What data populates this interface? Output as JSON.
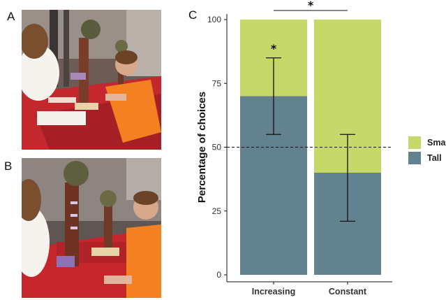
{
  "panels": {
    "a_label": "A",
    "b_label": "B",
    "c_label": "C"
  },
  "chart_data": {
    "type": "bar",
    "stacked": true,
    "categories": [
      "Increasing",
      "Constant"
    ],
    "series": [
      {
        "name": "Tall",
        "values": [
          70,
          40
        ],
        "color": "#62828f"
      },
      {
        "name": "Small",
        "values": [
          30,
          60
        ],
        "color": "#c6d86a"
      }
    ],
    "error_bars": [
      {
        "category": "Increasing",
        "center": 70,
        "low": 55,
        "high": 85
      },
      {
        "category": "Constant",
        "center": 40,
        "low": 21,
        "high": 55
      }
    ],
    "reference_line": 50,
    "significance": {
      "within_bar": [
        {
          "category": "Increasing",
          "label": "*"
        }
      ],
      "between_bars": {
        "label": "*"
      }
    },
    "ylabel": "Percentage of choices",
    "xlabel": "",
    "ylim": [
      0,
      100
    ],
    "yticks": [
      0,
      25,
      50,
      75,
      100
    ],
    "legend_position": "right",
    "legend_order": [
      "Small",
      "Tall"
    ],
    "grid": false
  }
}
